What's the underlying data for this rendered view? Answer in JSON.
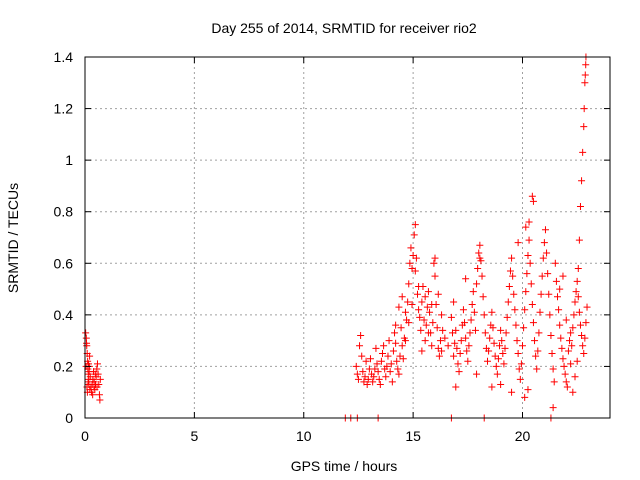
{
  "chart_data": {
    "type": "scatter",
    "title": "Day 255 of 2014, SRMTID for receiver rio2",
    "xlabel": "GPS time / hours",
    "ylabel": "SRMTID / TECUs",
    "xlim": [
      0,
      24
    ],
    "ylim": [
      0,
      1.4
    ],
    "x_ticks": [
      0,
      5,
      10,
      15,
      20
    ],
    "x_tick_labels": [
      "0",
      "5",
      "10",
      "15",
      "20"
    ],
    "y_ticks": [
      0,
      0.2,
      0.4,
      0.6,
      0.8,
      1.0,
      1.2,
      1.4
    ],
    "y_tick_labels": [
      "0",
      "0.2",
      "0.4",
      "0.6",
      "0.8",
      "1",
      "1.2",
      "1.4"
    ],
    "grid": true,
    "marker": "plus",
    "color": "#ff0000",
    "series": [
      {
        "name": "SRMTID",
        "points": [
          [
            0.03,
            0.33
          ],
          [
            0.06,
            0.31
          ],
          [
            0.08,
            0.28
          ],
          [
            0.1,
            0.25
          ],
          [
            0.12,
            0.22
          ],
          [
            0.13,
            0.19
          ],
          [
            0.15,
            0.17
          ],
          [
            0.17,
            0.15
          ],
          [
            0.05,
            0.2
          ],
          [
            0.09,
            0.12
          ],
          [
            0.11,
            0.1
          ],
          [
            0.14,
            0.14
          ],
          [
            0.19,
            0.18
          ],
          [
            0.21,
            0.24
          ],
          [
            0.07,
            0.29
          ],
          [
            0.16,
            0.21
          ],
          [
            0.18,
            0.13
          ],
          [
            0.22,
            0.11
          ],
          [
            0.24,
            0.16
          ],
          [
            0.2,
            0.2
          ],
          [
            0.27,
            0.12
          ],
          [
            0.3,
            0.1
          ],
          [
            0.33,
            0.13
          ],
          [
            0.36,
            0.15
          ],
          [
            0.39,
            0.18
          ],
          [
            0.42,
            0.14
          ],
          [
            0.45,
            0.11
          ],
          [
            0.48,
            0.13
          ],
          [
            0.51,
            0.16
          ],
          [
            0.54,
            0.19
          ],
          [
            0.57,
            0.21
          ],
          [
            0.6,
            0.17
          ],
          [
            0.63,
            0.13
          ],
          [
            0.66,
            0.09
          ],
          [
            0.68,
            0.07
          ],
          [
            0.7,
            0.15
          ],
          [
            0.35,
            0.09
          ],
          [
            0.41,
            0.12
          ],
          [
            0.47,
            0.17
          ],
          [
            0.55,
            0.12
          ],
          [
            12.45,
            0.0
          ],
          [
            13.4,
            0.0
          ],
          [
            16.75,
            0.0
          ],
          [
            18.25,
            0.0
          ],
          [
            21.3,
            0.0
          ],
          [
            11.9,
            0.0
          ],
          [
            12.15,
            0.0
          ],
          [
            12.4,
            0.2
          ],
          [
            12.45,
            0.17
          ],
          [
            12.5,
            0.15
          ],
          [
            12.55,
            0.28
          ],
          [
            12.6,
            0.32
          ],
          [
            12.65,
            0.24
          ],
          [
            12.7,
            0.18
          ],
          [
            12.75,
            0.14
          ],
          [
            12.8,
            0.16
          ],
          [
            12.85,
            0.22
          ],
          [
            12.9,
            0.13
          ],
          [
            12.95,
            0.15
          ],
          [
            13.0,
            0.19
          ],
          [
            13.05,
            0.23
          ],
          [
            13.1,
            0.17
          ],
          [
            13.15,
            0.14
          ],
          [
            13.2,
            0.16
          ],
          [
            13.25,
            0.19
          ],
          [
            13.3,
            0.27
          ],
          [
            13.35,
            0.21
          ],
          [
            13.4,
            0.18
          ],
          [
            13.45,
            0.15
          ],
          [
            13.5,
            0.13
          ],
          [
            13.55,
            0.22
          ],
          [
            13.6,
            0.25
          ],
          [
            13.65,
            0.28
          ],
          [
            13.7,
            0.19
          ],
          [
            13.75,
            0.16
          ],
          [
            13.8,
            0.2
          ],
          [
            13.85,
            0.24
          ],
          [
            13.9,
            0.3
          ],
          [
            13.95,
            0.18
          ],
          [
            14.0,
            0.21
          ],
          [
            14.05,
            0.14
          ],
          [
            14.1,
            0.26
          ],
          [
            14.15,
            0.33
          ],
          [
            14.2,
            0.29
          ],
          [
            14.25,
            0.22
          ],
          [
            14.3,
            0.19
          ],
          [
            14.35,
            0.17
          ],
          [
            14.4,
            0.24
          ],
          [
            14.45,
            0.35
          ],
          [
            14.5,
            0.28
          ],
          [
            14.55,
            0.23
          ],
          [
            14.6,
            0.31
          ],
          [
            14.65,
            0.41
          ],
          [
            14.7,
            0.38
          ],
          [
            14.75,
            0.45
          ],
          [
            14.8,
            0.52
          ],
          [
            14.85,
            0.6
          ],
          [
            14.9,
            0.66
          ],
          [
            14.95,
            0.58
          ],
          [
            15.0,
            0.63
          ],
          [
            15.05,
            0.71
          ],
          [
            15.1,
            0.75
          ],
          [
            15.15,
            0.62
          ],
          [
            15.2,
            0.48
          ],
          [
            15.25,
            0.42
          ],
          [
            15.3,
            0.39
          ],
          [
            15.35,
            0.34
          ],
          [
            15.4,
            0.45
          ],
          [
            15.45,
            0.51
          ],
          [
            15.5,
            0.38
          ],
          [
            15.55,
            0.3
          ],
          [
            15.6,
            0.36
          ],
          [
            15.65,
            0.43
          ],
          [
            15.7,
            0.49
          ],
          [
            15.75,
            0.41
          ],
          [
            15.8,
            0.33
          ],
          [
            15.85,
            0.28
          ],
          [
            15.9,
            0.37
          ],
          [
            15.95,
            0.6
          ],
          [
            16.0,
            0.55
          ],
          [
            16.05,
            0.44
          ],
          [
            16.1,
            0.35
          ],
          [
            16.15,
            0.27
          ],
          [
            16.2,
            0.24
          ],
          [
            16.25,
            0.3
          ],
          [
            16.3,
            0.4
          ],
          [
            16.35,
            0.34
          ],
          [
            14.2,
            0.36
          ],
          [
            14.35,
            0.43
          ],
          [
            14.5,
            0.47
          ],
          [
            14.65,
            0.3
          ],
          [
            14.8,
            0.37
          ],
          [
            14.95,
            0.44
          ],
          [
            15.1,
            0.57
          ],
          [
            15.25,
            0.51
          ],
          [
            15.4,
            0.26
          ],
          [
            15.55,
            0.47
          ],
          [
            15.7,
            0.33
          ],
          [
            15.85,
            0.44
          ],
          [
            16.0,
            0.62
          ],
          [
            16.15,
            0.48
          ],
          [
            16.3,
            0.26
          ],
          [
            16.45,
            0.31
          ],
          [
            16.6,
            0.28
          ],
          [
            16.75,
            0.39
          ],
          [
            16.8,
            0.33
          ],
          [
            16.85,
            0.24
          ],
          [
            16.9,
            0.29
          ],
          [
            16.95,
            0.34
          ],
          [
            17.0,
            0.27
          ],
          [
            17.05,
            0.21
          ],
          [
            17.1,
            0.18
          ],
          [
            17.15,
            0.25
          ],
          [
            17.2,
            0.3
          ],
          [
            17.25,
            0.36
          ],
          [
            17.3,
            0.42
          ],
          [
            17.35,
            0.37
          ],
          [
            17.4,
            0.31
          ],
          [
            17.45,
            0.26
          ],
          [
            17.5,
            0.22
          ],
          [
            17.55,
            0.28
          ],
          [
            17.6,
            0.33
          ],
          [
            17.65,
            0.38
          ],
          [
            17.7,
            0.44
          ],
          [
            17.75,
            0.49
          ],
          [
            17.8,
            0.41
          ],
          [
            17.85,
            0.34
          ],
          [
            17.9,
            0.52
          ],
          [
            17.95,
            0.58
          ],
          [
            18.0,
            0.64
          ],
          [
            18.05,
            0.67
          ],
          [
            18.1,
            0.61
          ],
          [
            18.15,
            0.55
          ],
          [
            18.2,
            0.47
          ],
          [
            18.25,
            0.4
          ],
          [
            18.3,
            0.33
          ],
          [
            18.35,
            0.27
          ],
          [
            18.4,
            0.22
          ],
          [
            18.45,
            0.26
          ],
          [
            18.5,
            0.31
          ],
          [
            18.55,
            0.36
          ],
          [
            18.6,
            0.41
          ],
          [
            18.65,
            0.35
          ],
          [
            18.7,
            0.29
          ],
          [
            18.75,
            0.24
          ],
          [
            18.8,
            0.2
          ],
          [
            18.85,
            0.17
          ],
          [
            18.9,
            0.23
          ],
          [
            18.95,
            0.28
          ],
          [
            19.0,
            0.34
          ],
          [
            19.05,
            0.3
          ],
          [
            19.1,
            0.25
          ],
          [
            19.15,
            0.21
          ],
          [
            19.2,
            0.27
          ],
          [
            19.25,
            0.33
          ],
          [
            19.3,
            0.39
          ],
          [
            19.35,
            0.45
          ],
          [
            19.4,
            0.51
          ],
          [
            19.45,
            0.57
          ],
          [
            19.5,
            0.62
          ],
          [
            19.55,
            0.55
          ],
          [
            19.6,
            0.48
          ],
          [
            19.65,
            0.42
          ],
          [
            19.7,
            0.36
          ],
          [
            19.75,
            0.3
          ],
          [
            19.8,
            0.25
          ],
          [
            19.85,
            0.19
          ],
          [
            19.9,
            0.15
          ],
          [
            19.95,
            0.21
          ],
          [
            20.0,
            0.28
          ],
          [
            20.05,
            0.35
          ],
          [
            20.1,
            0.42
          ],
          [
            20.15,
            0.49
          ],
          [
            20.2,
            0.56
          ],
          [
            20.25,
            0.63
          ],
          [
            20.3,
            0.69
          ],
          [
            20.35,
            0.6
          ],
          [
            20.4,
            0.52
          ],
          [
            20.45,
            0.44
          ],
          [
            20.5,
            0.37
          ],
          [
            20.55,
            0.3
          ],
          [
            20.6,
            0.24
          ],
          [
            20.65,
            0.19
          ],
          [
            20.7,
            0.26
          ],
          [
            20.75,
            0.33
          ],
          [
            20.8,
            0.41
          ],
          [
            20.85,
            0.48
          ],
          [
            20.9,
            0.55
          ],
          [
            20.95,
            0.62
          ],
          [
            21.0,
            0.68
          ],
          [
            21.05,
            0.73
          ],
          [
            21.1,
            0.64
          ],
          [
            21.15,
            0.56
          ],
          [
            21.2,
            0.48
          ],
          [
            21.25,
            0.4
          ],
          [
            21.3,
            0.32
          ],
          [
            21.35,
            0.25
          ],
          [
            21.4,
            0.19
          ],
          [
            21.45,
            0.14
          ],
          [
            20.45,
            0.86
          ],
          [
            20.5,
            0.84
          ],
          [
            20.3,
            0.76
          ],
          [
            19.8,
            0.68
          ],
          [
            18.05,
            0.62
          ],
          [
            17.4,
            0.54
          ],
          [
            16.85,
            0.45
          ],
          [
            20.15,
            0.74
          ],
          [
            21.4,
            0.04
          ],
          [
            20.1,
            0.08
          ],
          [
            19.0,
            0.13
          ],
          [
            17.9,
            0.17
          ],
          [
            16.95,
            0.12
          ],
          [
            18.6,
            0.12
          ],
          [
            20.25,
            0.11
          ],
          [
            19.5,
            0.1
          ],
          [
            21.5,
            0.6
          ],
          [
            21.55,
            0.53
          ],
          [
            21.6,
            0.47
          ],
          [
            21.65,
            0.42
          ],
          [
            21.7,
            0.36
          ],
          [
            21.75,
            0.31
          ],
          [
            21.8,
            0.27
          ],
          [
            21.85,
            0.23
          ],
          [
            21.9,
            0.2
          ],
          [
            21.95,
            0.17
          ],
          [
            22.0,
            0.14
          ],
          [
            22.05,
            0.12
          ],
          [
            22.1,
            0.26
          ],
          [
            22.15,
            0.3
          ],
          [
            22.2,
            0.33
          ],
          [
            22.25,
            0.28
          ],
          [
            22.3,
            0.35
          ],
          [
            22.35,
            0.4
          ],
          [
            22.4,
            0.45
          ],
          [
            22.45,
            0.49
          ],
          [
            22.5,
            0.53
          ],
          [
            22.55,
            0.47
          ],
          [
            22.6,
            0.41
          ],
          [
            22.65,
            0.36
          ],
          [
            22.7,
            0.32
          ],
          [
            22.75,
            0.28
          ],
          [
            22.8,
            0.25
          ],
          [
            22.85,
            0.31
          ],
          [
            22.9,
            0.37
          ],
          [
            22.95,
            0.43
          ],
          [
            22.55,
            0.58
          ],
          [
            22.6,
            0.69
          ],
          [
            22.65,
            0.82
          ],
          [
            22.7,
            0.92
          ],
          [
            22.75,
            1.03
          ],
          [
            22.8,
            1.13
          ],
          [
            22.82,
            1.2
          ],
          [
            22.85,
            1.3
          ],
          [
            22.87,
            1.33
          ],
          [
            22.89,
            1.37
          ],
          [
            22.9,
            1.4
          ],
          [
            22.3,
            0.1
          ],
          [
            22.4,
            0.16
          ],
          [
            22.5,
            0.22
          ],
          [
            21.7,
            0.5
          ],
          [
            21.85,
            0.55
          ],
          [
            22.0,
            0.38
          ],
          [
            22.2,
            0.21
          ]
        ]
      }
    ]
  }
}
